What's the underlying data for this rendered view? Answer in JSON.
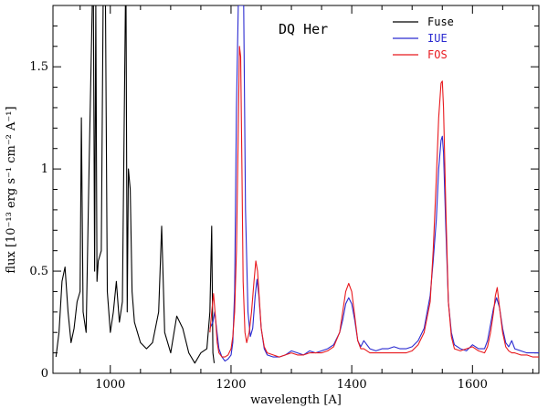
{
  "chart_data": {
    "type": "line",
    "title": "DQ Her",
    "xlabel": "wavelength [A]",
    "ylabel": "flux [10⁻¹³ erg s⁻¹ cm⁻² A⁻¹]",
    "xlim": [
      905,
      1710
    ],
    "ylim": [
      0,
      1.8
    ],
    "x_ticks": [
      1000,
      1200,
      1400,
      1600
    ],
    "x_tick_labels": [
      "1000",
      "1200",
      "1400",
      "1600"
    ],
    "y_ticks": [
      0,
      0.5,
      1,
      1.5
    ],
    "y_tick_labels": [
      "0",
      "0.5",
      "1",
      "1.5"
    ],
    "legend_position": "top-right",
    "grid": false,
    "series": [
      {
        "name": "Fuse",
        "color": "#000000",
        "x": [
          910,
          915,
          920,
          925,
          930,
          935,
          940,
          945,
          950,
          952,
          955,
          960,
          965,
          970,
          972,
          974,
          976,
          978,
          980,
          985,
          988,
          990,
          992,
          995,
          1000,
          1005,
          1010,
          1015,
          1020,
          1025,
          1026,
          1028,
          1030,
          1033,
          1036,
          1040,
          1045,
          1050,
          1060,
          1070,
          1080,
          1085,
          1090,
          1100,
          1110,
          1120,
          1130,
          1140,
          1150,
          1160,
          1165,
          1168,
          1170,
          1172
        ],
        "y": [
          0.08,
          0.2,
          0.45,
          0.52,
          0.3,
          0.15,
          0.22,
          0.35,
          0.4,
          1.25,
          0.3,
          0.2,
          1.05,
          1.8,
          1.8,
          0.5,
          1.8,
          0.45,
          0.55,
          0.6,
          1.8,
          1.8,
          1.8,
          0.4,
          0.2,
          0.3,
          0.45,
          0.25,
          0.35,
          1.8,
          1.8,
          0.3,
          1.0,
          0.9,
          0.4,
          0.25,
          0.2,
          0.15,
          0.12,
          0.15,
          0.3,
          0.72,
          0.2,
          0.1,
          0.28,
          0.22,
          0.1,
          0.05,
          0.1,
          0.12,
          0.3,
          0.72,
          0.1,
          0.05
        ]
      },
      {
        "name": "IUE",
        "color": "#2a2ad0",
        "x": [
          1165,
          1170,
          1173,
          1176,
          1180,
          1185,
          1190,
          1195,
          1200,
          1203,
          1206,
          1209,
          1212,
          1215,
          1217,
          1219,
          1221,
          1224,
          1228,
          1232,
          1236,
          1240,
          1243,
          1246,
          1250,
          1255,
          1260,
          1270,
          1280,
          1290,
          1300,
          1310,
          1320,
          1330,
          1340,
          1350,
          1360,
          1370,
          1380,
          1385,
          1390,
          1395,
          1400,
          1405,
          1410,
          1415,
          1420,
          1430,
          1440,
          1450,
          1460,
          1470,
          1480,
          1490,
          1500,
          1510,
          1520,
          1530,
          1535,
          1540,
          1544,
          1548,
          1550,
          1552,
          1556,
          1560,
          1565,
          1570,
          1580,
          1590,
          1600,
          1610,
          1620,
          1625,
          1630,
          1635,
          1640,
          1645,
          1650,
          1655,
          1660,
          1665,
          1670,
          1680,
          1690,
          1700,
          1710
        ],
        "y": [
          0.22,
          0.25,
          0.3,
          0.22,
          0.12,
          0.08,
          0.06,
          0.07,
          0.09,
          0.15,
          0.4,
          1.3,
          1.8,
          1.8,
          1.8,
          1.8,
          1.8,
          0.8,
          0.3,
          0.18,
          0.22,
          0.38,
          0.46,
          0.38,
          0.22,
          0.12,
          0.09,
          0.08,
          0.08,
          0.09,
          0.11,
          0.1,
          0.09,
          0.11,
          0.1,
          0.11,
          0.12,
          0.14,
          0.2,
          0.26,
          0.34,
          0.37,
          0.34,
          0.26,
          0.16,
          0.13,
          0.16,
          0.12,
          0.11,
          0.12,
          0.12,
          0.13,
          0.12,
          0.12,
          0.13,
          0.16,
          0.22,
          0.38,
          0.55,
          0.75,
          1.0,
          1.14,
          1.16,
          1.08,
          0.7,
          0.35,
          0.2,
          0.14,
          0.12,
          0.11,
          0.14,
          0.12,
          0.12,
          0.16,
          0.24,
          0.32,
          0.37,
          0.32,
          0.22,
          0.15,
          0.13,
          0.16,
          0.12,
          0.11,
          0.1,
          0.1,
          0.1
        ]
      },
      {
        "name": "FOS",
        "color": "#e8191e",
        "x": [
          1165,
          1168,
          1171,
          1174,
          1177,
          1180,
          1185,
          1190,
          1195,
          1200,
          1203,
          1206,
          1209,
          1212,
          1214,
          1216,
          1218,
          1220,
          1223,
          1226,
          1230,
          1234,
          1238,
          1241,
          1244,
          1247,
          1250,
          1255,
          1260,
          1270,
          1280,
          1290,
          1300,
          1310,
          1320,
          1330,
          1340,
          1350,
          1360,
          1370,
          1380,
          1385,
          1390,
          1395,
          1400,
          1405,
          1410,
          1415,
          1420,
          1430,
          1440,
          1450,
          1460,
          1470,
          1480,
          1490,
          1500,
          1510,
          1520,
          1530,
          1535,
          1540,
          1544,
          1548,
          1550,
          1552,
          1556,
          1560,
          1565,
          1570,
          1580,
          1590,
          1600,
          1610,
          1620,
          1625,
          1630,
          1635,
          1638,
          1641,
          1645,
          1650,
          1655,
          1660,
          1665,
          1670,
          1680,
          1690,
          1700,
          1710
        ],
        "y": [
          0.2,
          0.3,
          0.39,
          0.28,
          0.15,
          0.1,
          0.08,
          0.08,
          0.09,
          0.12,
          0.18,
          0.3,
          0.6,
          1.2,
          1.6,
          1.55,
          1.0,
          0.45,
          0.2,
          0.15,
          0.2,
          0.3,
          0.45,
          0.55,
          0.5,
          0.36,
          0.22,
          0.13,
          0.1,
          0.09,
          0.08,
          0.09,
          0.1,
          0.09,
          0.09,
          0.1,
          0.1,
          0.1,
          0.11,
          0.13,
          0.2,
          0.3,
          0.4,
          0.44,
          0.4,
          0.28,
          0.16,
          0.12,
          0.12,
          0.1,
          0.1,
          0.1,
          0.1,
          0.1,
          0.1,
          0.1,
          0.11,
          0.14,
          0.2,
          0.35,
          0.6,
          0.95,
          1.25,
          1.42,
          1.43,
          1.3,
          0.8,
          0.35,
          0.18,
          0.12,
          0.11,
          0.12,
          0.13,
          0.11,
          0.1,
          0.13,
          0.2,
          0.3,
          0.38,
          0.42,
          0.32,
          0.2,
          0.13,
          0.11,
          0.1,
          0.1,
          0.09,
          0.09,
          0.08,
          0.08
        ]
      }
    ]
  }
}
